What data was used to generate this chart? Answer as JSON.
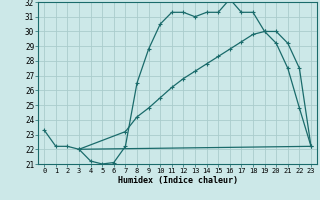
{
  "xlabel": "Humidex (Indice chaleur)",
  "bg_color": "#cce8e8",
  "line_color": "#1a6b6b",
  "grid_color": "#aacccc",
  "xlim": [
    -0.5,
    23.5
  ],
  "ylim": [
    21.0,
    32.0
  ],
  "yticks": [
    21,
    22,
    23,
    24,
    25,
    26,
    27,
    28,
    29,
    30,
    31,
    32
  ],
  "xticks": [
    0,
    1,
    2,
    3,
    4,
    5,
    6,
    7,
    8,
    9,
    10,
    11,
    12,
    13,
    14,
    15,
    16,
    17,
    18,
    19,
    20,
    21,
    22,
    23
  ],
  "curve1_x": [
    0,
    1,
    2,
    3,
    4,
    5,
    6,
    7,
    8,
    9,
    10,
    11,
    12,
    13,
    14,
    15,
    16,
    17,
    18,
    19,
    20,
    21,
    22,
    23
  ],
  "curve1_y": [
    23.3,
    22.2,
    22.2,
    22.0,
    21.2,
    21.0,
    21.1,
    22.2,
    26.5,
    28.8,
    30.5,
    31.3,
    31.3,
    31.0,
    31.3,
    31.3,
    32.2,
    31.3,
    31.3,
    30.0,
    29.2,
    27.5,
    24.8,
    22.2
  ],
  "curve2_x": [
    3,
    7,
    8,
    9,
    10,
    11,
    12,
    13,
    14,
    15,
    16,
    17,
    18,
    19,
    20,
    21,
    22,
    23
  ],
  "curve2_y": [
    22.0,
    23.2,
    24.2,
    24.8,
    25.5,
    26.2,
    26.8,
    27.3,
    27.8,
    28.3,
    28.8,
    29.3,
    29.8,
    30.0,
    30.0,
    29.2,
    27.5,
    22.2
  ],
  "curve3_x": [
    3,
    23
  ],
  "curve3_y": [
    22.0,
    22.2
  ]
}
